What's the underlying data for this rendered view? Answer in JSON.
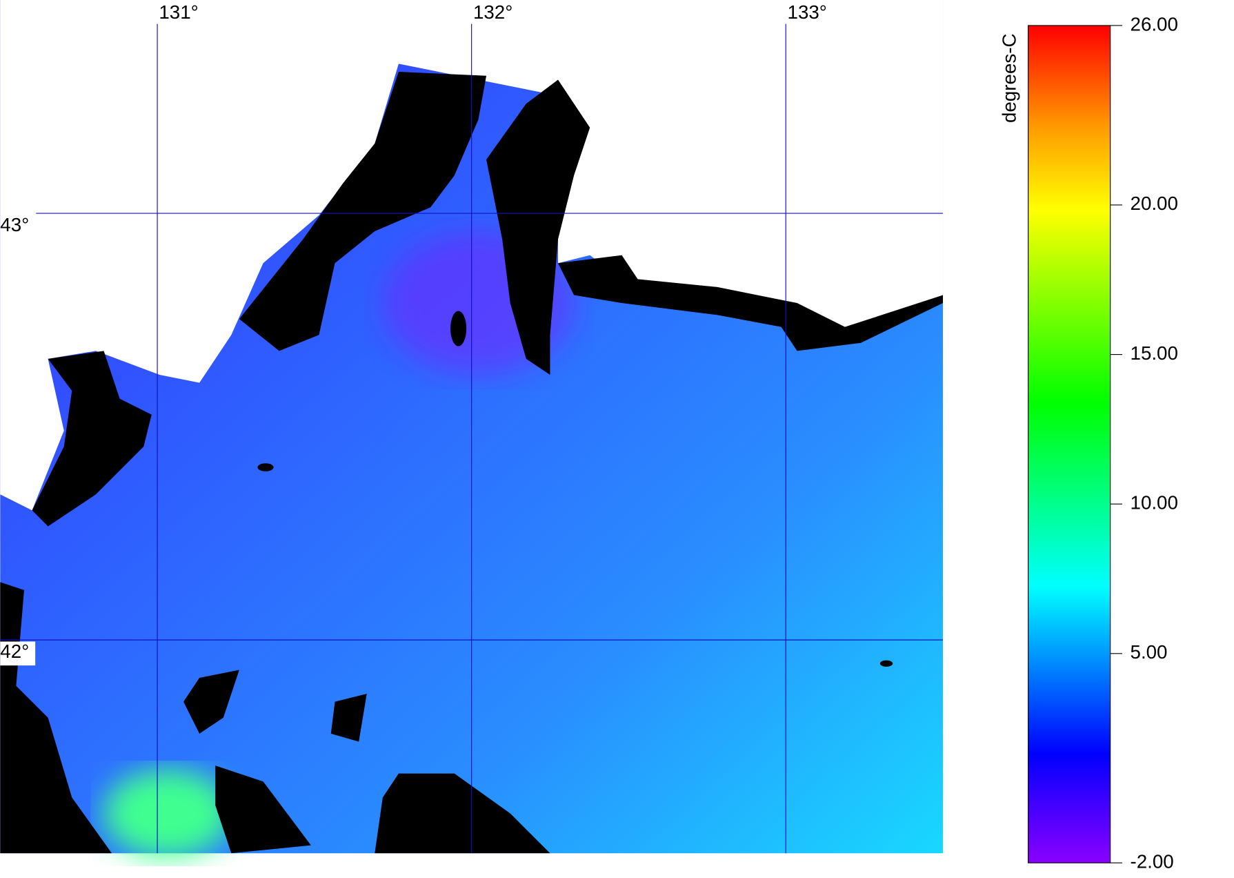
{
  "map": {
    "lon_range": [
      130.5,
      133.5
    ],
    "lat_range": [
      43.5,
      41.5
    ],
    "lon_lines": [
      {
        "value": 131,
        "label": "131°"
      },
      {
        "value": 132,
        "label": "132°"
      },
      {
        "value": 133,
        "label": "133°"
      }
    ],
    "lat_lines": [
      {
        "value": 43,
        "label": "43°"
      },
      {
        "value": 42,
        "label": "42°"
      }
    ]
  },
  "colorbar": {
    "label": "degrees-C",
    "range": [
      -2,
      26
    ],
    "ticks": [
      {
        "value": 26,
        "label": "26.00"
      },
      {
        "value": 20,
        "label": "20.00"
      },
      {
        "value": 15,
        "label": "15.00"
      },
      {
        "value": 10,
        "label": "10.00"
      },
      {
        "value": 5,
        "label": "5.00"
      },
      {
        "value": -2,
        "label": "-2.00"
      }
    ]
  }
}
